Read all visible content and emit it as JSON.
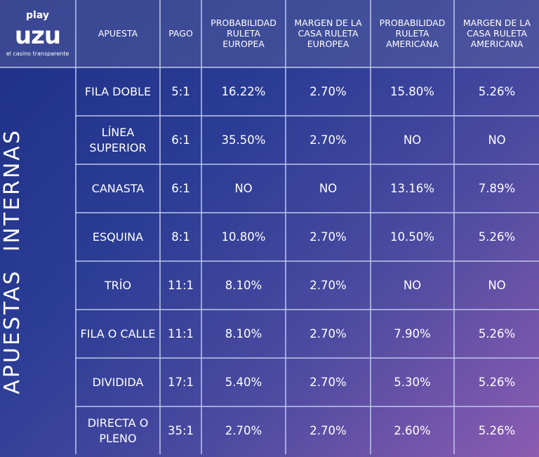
{
  "logo": {
    "play": "play",
    "brand": "uzu",
    "tagline": "el casino transparente"
  },
  "headers": [
    "APUESTA",
    "PAGO",
    "PROBABILIDAD RULETA EUROPEA",
    "MARGEN DE LA CASA RULETA EUROPEA",
    "PROBABILIDAD RULETA AMERICANA",
    "MARGEN DE LA CASA RULETA AMERICANA"
  ],
  "section_label": "APUESTAS  INTERNAS",
  "rows": [
    {
      "bet": "FILA  DOBLE",
      "pay": "5:1",
      "eu_prob": "16.22%",
      "eu_margin": "2.70%",
      "am_prob": "15.80%",
      "am_margin": "5.26%"
    },
    {
      "bet": "LÍNEA SUPERIOR",
      "pay": "6:1",
      "eu_prob": "35.50%",
      "eu_margin": "2.70%",
      "am_prob": "NO",
      "am_margin": "NO"
    },
    {
      "bet": "CANASTA",
      "pay": "6:1",
      "eu_prob": "NO",
      "eu_margin": "NO",
      "am_prob": "13.16%",
      "am_margin": "7.89%"
    },
    {
      "bet": "ESQUINA",
      "pay": "8:1",
      "eu_prob": "10.80%",
      "eu_margin": "2.70%",
      "am_prob": "10.50%",
      "am_margin": "5.26%"
    },
    {
      "bet": "TRÍO",
      "pay": "11:1",
      "eu_prob": "8.10%",
      "eu_margin": "2.70%",
      "am_prob": "NO",
      "am_margin": "NO"
    },
    {
      "bet": "FILA O CALLE",
      "pay": "11:1",
      "eu_prob": "8.10%",
      "eu_margin": "2.70%",
      "am_prob": "7.90%",
      "am_margin": "5.26%"
    },
    {
      "bet": "DIVIDIDA",
      "pay": "17:1",
      "eu_prob": "5.40%",
      "eu_margin": "2.70%",
      "am_prob": "5.30%",
      "am_margin": "5.26%"
    },
    {
      "bet": "DIRECTA O PLENO",
      "pay": "35:1",
      "eu_prob": "2.70%",
      "eu_margin": "2.70%",
      "am_prob": "2.60%",
      "am_margin": "5.26%"
    }
  ]
}
